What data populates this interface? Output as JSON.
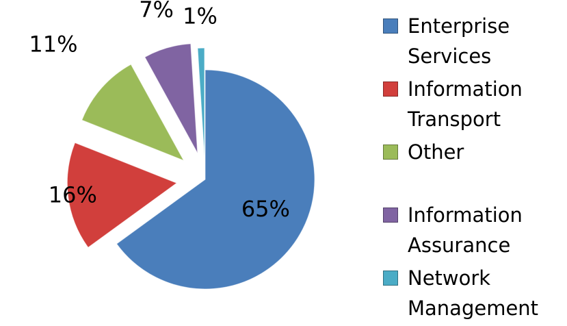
{
  "chart_data": {
    "type": "pie",
    "categories": [
      "Enterprise Services",
      "Information Transport",
      "Other",
      "Information Assurance",
      "Network Management"
    ],
    "values": [
      65,
      16,
      11,
      7,
      1
    ],
    "value_labels": [
      "65%",
      "16%",
      "11%",
      "7%",
      "1%"
    ],
    "colors": [
      "#4a7ebb",
      "#d13f3c",
      "#9bbb59",
      "#8064a2",
      "#4bacc6"
    ],
    "legend": "right"
  }
}
